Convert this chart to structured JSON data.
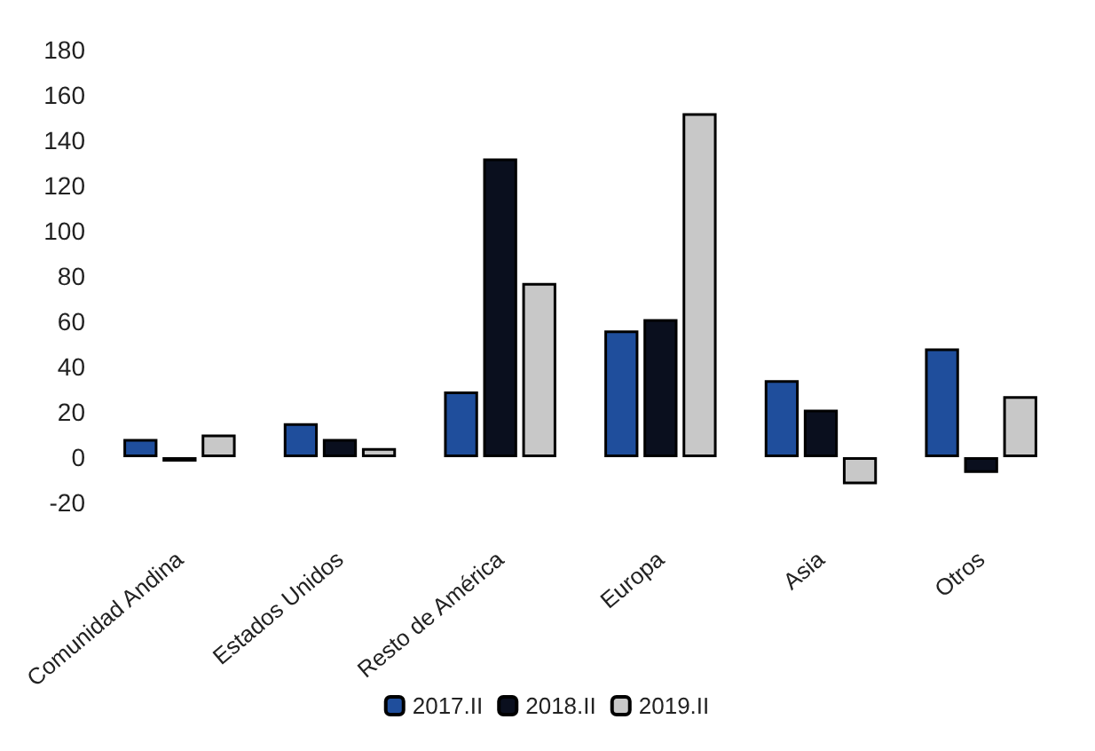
{
  "chart_data": {
    "type": "bar",
    "categories": [
      "Comunidad Andina",
      "Estados Unidos",
      "Resto de América",
      "Europa",
      "Asia",
      "Otros"
    ],
    "series": [
      {
        "name": "2017.II",
        "color": "#1f4e9c",
        "values": [
          8,
          15,
          29,
          56,
          34,
          48
        ]
      },
      {
        "name": "2018.II",
        "color": "#0a0f1e",
        "values": [
          -2,
          8,
          132,
          61,
          21,
          -7
        ]
      },
      {
        "name": "2019.II",
        "color": "#c8c8c8",
        "values": [
          10,
          4,
          77,
          152,
          -12,
          27
        ]
      }
    ],
    "ylim": [
      -20,
      180
    ],
    "yticks": [
      -20,
      0,
      20,
      40,
      60,
      80,
      100,
      120,
      140,
      160,
      180
    ],
    "grid": false,
    "legend": "bottom"
  }
}
